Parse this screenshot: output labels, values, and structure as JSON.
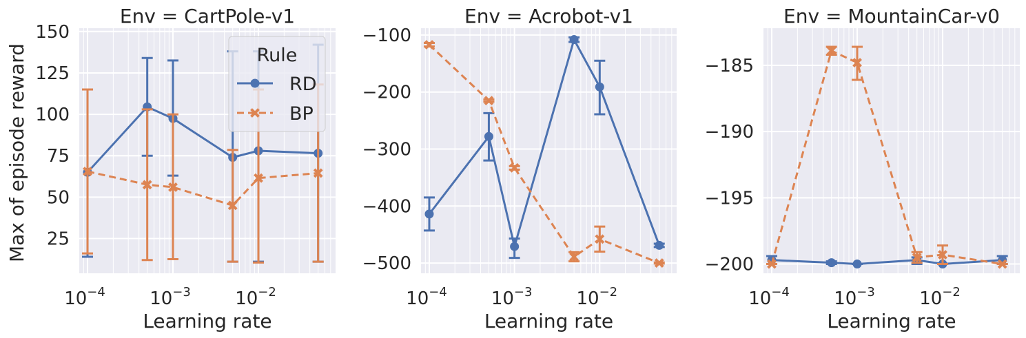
{
  "figure": {
    "ylabel": "Max of episode reward",
    "legend": {
      "title": "Rule",
      "placement": "upper-right of first panel",
      "items": [
        {
          "name": "RD",
          "color": "#4c72b0",
          "marker": "circle",
          "linestyle": "solid"
        },
        {
          "name": "BP",
          "color": "#dd8452",
          "marker": "x",
          "linestyle": "dashed"
        }
      ]
    },
    "style": {
      "background": "#eaeaf2",
      "grid": true,
      "grid_color": "#ffffff"
    }
  },
  "chart_data": [
    {
      "type": "line",
      "title": "Env = CartPole-v1",
      "xlabel": "Learning rate",
      "ylabel": "Max of episode reward",
      "xscale": "log",
      "xlim": [
        8e-05,
        0.08
      ],
      "ylim": [
        4,
        152
      ],
      "yticks": [
        25,
        50,
        75,
        100,
        125,
        150
      ],
      "ytick_labels": [
        "25",
        "50",
        "75",
        "100",
        "125",
        "150"
      ],
      "xticks": [
        0.0001,
        0.001,
        0.01
      ],
      "xtick_labels": [
        [
          "10",
          "−4"
        ],
        [
          "10",
          "−3"
        ],
        [
          "10",
          "−2"
        ]
      ],
      "x": [
        0.0001,
        0.0005,
        0.001,
        0.005,
        0.01,
        0.05
      ],
      "series": [
        {
          "name": "RD",
          "values": [
            65,
            104.5,
            97.5,
            74,
            78,
            76.5
          ],
          "err_low": [
            14,
            75,
            63,
            11,
            11,
            11
          ],
          "err_high": [
            115,
            134,
            132.5,
            138,
            138,
            142
          ]
        },
        {
          "name": "BP",
          "values": [
            65.5,
            57.5,
            56,
            45,
            61.5,
            64.5
          ],
          "err_low": [
            16,
            12,
            12.5,
            11,
            10.5,
            11
          ],
          "err_high": [
            115,
            103,
            100,
            78.5,
            115,
            118
          ]
        }
      ]
    },
    {
      "type": "line",
      "title": "Env = Acrobot-v1",
      "xlabel": "Learning rate",
      "xscale": "log",
      "xlim": [
        8e-05,
        0.08
      ],
      "ylim": [
        -518,
        -88
      ],
      "yticks": [
        -500,
        -400,
        -300,
        -200,
        -100
      ],
      "ytick_labels": [
        "−500",
        "−400",
        "−300",
        "−200",
        "−100"
      ],
      "xticks": [
        0.0001,
        0.001,
        0.01
      ],
      "xtick_labels": [
        [
          "10",
          "−4"
        ],
        [
          "10",
          "−3"
        ],
        [
          "10",
          "−2"
        ]
      ],
      "x": [
        0.0001,
        0.0005,
        0.001,
        0.005,
        0.01,
        0.05
      ],
      "series": [
        {
          "name": "RD",
          "values": [
            -414,
            -278,
            -471,
            -108,
            -191,
            -469
          ],
          "err_low": [
            -443,
            -320,
            -491,
            -112,
            -239,
            -472
          ],
          "err_high": [
            -385,
            -237,
            -457,
            -104,
            -145,
            -466
          ]
        },
        {
          "name": "BP",
          "values": [
            -117,
            -215,
            -333,
            -489,
            -458,
            -500
          ],
          "err_low": [
            -120,
            -217,
            -336,
            -497,
            -480,
            -501
          ],
          "err_high": [
            -114,
            -213,
            -330,
            -481,
            -436,
            -499
          ]
        }
      ]
    },
    {
      "type": "line",
      "title": "Env = MountainCar-v0",
      "xlabel": "Learning rate",
      "xscale": "log",
      "xlim": [
        8e-05,
        0.08
      ],
      "ylim": [
        -200.7,
        -182.2
      ],
      "yticks": [
        -200,
        -195,
        -190,
        -185
      ],
      "ytick_labels": [
        "−200",
        "−195",
        "−190",
        "−185"
      ],
      "xticks": [
        0.0001,
        0.001,
        0.01
      ],
      "xtick_labels": [
        [
          "10",
          "−4"
        ],
        [
          "10",
          "−3"
        ],
        [
          "10",
          "−2"
        ]
      ],
      "x": [
        0.0001,
        0.0005,
        0.001,
        0.005,
        0.01,
        0.05
      ],
      "series": [
        {
          "name": "RD",
          "values": [
            -199.7,
            -199.9,
            -200,
            -199.7,
            -200,
            -199.7
          ],
          "err_low": [
            -200,
            -200,
            -200,
            -200,
            -200,
            -200
          ],
          "err_high": [
            -199.4,
            -199.8,
            -200,
            -199.5,
            -200,
            -199.4
          ]
        },
        {
          "name": "BP",
          "values": [
            -200,
            -183.9,
            -184.8,
            -199.5,
            -199.3,
            -200
          ],
          "err_low": [
            -200,
            -184.2,
            -186.1,
            -199.9,
            -200,
            -200
          ],
          "err_high": [
            -200,
            -183.6,
            -183.6,
            -199.1,
            -198.6,
            -200
          ]
        }
      ]
    }
  ]
}
